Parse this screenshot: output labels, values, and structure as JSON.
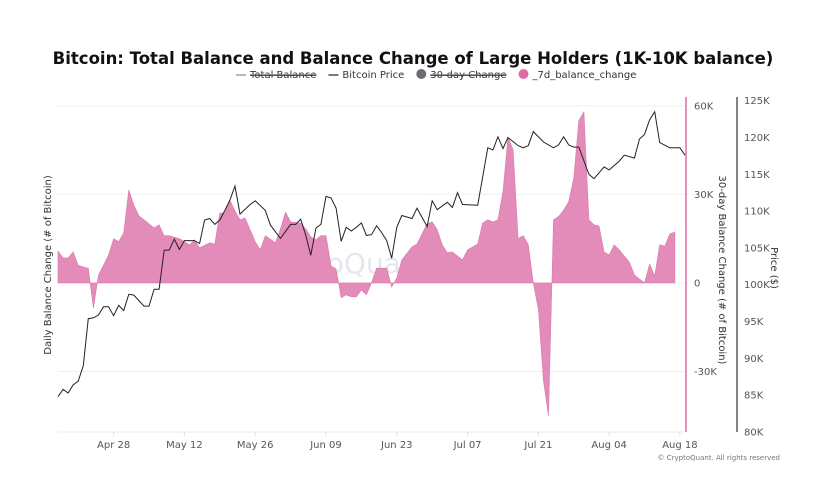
{
  "chart_data": {
    "type": "line+area",
    "title": "Bitcoin: Total Balance and Balance Change of Large Holders (1K-10K balance)",
    "legend": {
      "placement": "top",
      "entries": [
        {
          "label": "Total Balance",
          "hidden": true,
          "color": "#888888",
          "marker": "line"
        },
        {
          "label": "Bitcoin Price",
          "hidden": false,
          "color": "#222222",
          "marker": "line"
        },
        {
          "label": "30-day Change",
          "hidden": true,
          "color": "#6b6b78",
          "marker": "dot"
        },
        {
          "label": "_7d_balance_change",
          "hidden": false,
          "color": "#e06aa6",
          "marker": "dot"
        }
      ]
    },
    "x_ticks": [
      "Apr 28",
      "May 12",
      "May 26",
      "Jun 09",
      "Jun 23",
      "Jul 07",
      "Jul 21",
      "Aug 04",
      "Aug 18"
    ],
    "left_axis": {
      "label": "Daily Balance Change (# of Bitcoin)"
    },
    "right_axis_1": {
      "label": "30-day Balance Change (# of Bitcoin)",
      "ticks": [
        "60K",
        "30K",
        "0",
        "-30K"
      ],
      "tick_values": [
        60,
        30,
        0,
        -30
      ],
      "range": [
        -50.5,
        63
      ],
      "unit": "K",
      "color": "#e06aa6"
    },
    "right_axis_2": {
      "label": "Price ($)",
      "ticks": [
        "125K",
        "120K",
        "115K",
        "110K",
        "105K",
        "100K",
        "95K",
        "90K",
        "85K",
        "80K"
      ],
      "tick_values": [
        125,
        120,
        115,
        110,
        105,
        100,
        95,
        90,
        85,
        80
      ],
      "range": [
        80,
        125.5
      ],
      "unit": "K"
    },
    "grid": true,
    "x_range": [
      "Apr 17",
      "Aug 19"
    ],
    "series": [
      {
        "name": "_7d_balance_change",
        "type": "area",
        "color": "#e38bb9",
        "axis": "right_axis_1",
        "unit": "K BTC",
        "points": [
          [
            "Apr 17",
            10.8
          ],
          [
            "Apr 18",
            8.5
          ],
          [
            "Apr 19",
            8.5
          ],
          [
            "Apr 20",
            10.5
          ],
          [
            "Apr 21",
            6
          ],
          [
            "Apr 22",
            5.4
          ],
          [
            "Apr 23",
            5
          ],
          [
            "Apr 24",
            -8.5
          ],
          [
            "Apr 25",
            2.7
          ],
          [
            "Apr 26",
            6
          ],
          [
            "Apr 27",
            9.5
          ],
          [
            "Apr 28",
            15
          ],
          [
            "Apr 29",
            14
          ],
          [
            "Apr 30",
            17
          ],
          [
            "May 1",
            31.5
          ],
          [
            "May 2",
            26.4
          ],
          [
            "May 3",
            22.7
          ],
          [
            "May 4",
            21.4
          ],
          [
            "May 5",
            20
          ],
          [
            "May 6",
            18.6
          ],
          [
            "May 7",
            19.7
          ],
          [
            "May 8",
            16
          ],
          [
            "May 9",
            16
          ],
          [
            "May 11",
            15
          ],
          [
            "May 12",
            14
          ],
          [
            "May 13",
            12.9
          ],
          [
            "May 14",
            14.6
          ],
          [
            "May 15",
            11.9
          ],
          [
            "May 17",
            13.6
          ],
          [
            "May 18",
            13.2
          ],
          [
            "May 19",
            23.7
          ],
          [
            "May 20",
            23.7
          ],
          [
            "May 21",
            28
          ],
          [
            "May 22",
            24.4
          ],
          [
            "May 23",
            21.4
          ],
          [
            "May 24",
            22
          ],
          [
            "May 25",
            18
          ],
          [
            "May 26",
            14
          ],
          [
            "May 27",
            11.2
          ],
          [
            "May 28",
            16
          ],
          [
            "May 30",
            13.6
          ],
          [
            "May 31",
            18.3
          ],
          [
            "Jun 1",
            24
          ],
          [
            "Jun 2",
            20.7
          ],
          [
            "Jun 4",
            20.3
          ],
          [
            "Jun 5",
            18.3
          ],
          [
            "Jun 6",
            15.6
          ],
          [
            "Jun 7",
            14.6
          ],
          [
            "Jun 8",
            16
          ],
          [
            "Jun 9",
            16
          ],
          [
            "Jun 10",
            5.8
          ],
          [
            "Jun 11",
            4.7
          ],
          [
            "Jun 12",
            -5
          ],
          [
            "Jun 13",
            -4
          ],
          [
            "Jun 14",
            -4.7
          ],
          [
            "Jun 15",
            -4.7
          ],
          [
            "Jun 16",
            -2.4
          ],
          [
            "Jun 17",
            -4
          ],
          [
            "Jun 18",
            0
          ],
          [
            "Jun 19",
            5
          ],
          [
            "Jun 21",
            5
          ],
          [
            "Jun 22",
            -1.4
          ],
          [
            "Jun 23",
            1.7
          ],
          [
            "Jun 24",
            7.8
          ],
          [
            "Jun 26",
            12.2
          ],
          [
            "Jun 27",
            13.2
          ],
          [
            "Jun 29",
            20
          ],
          [
            "Jun 30",
            20.7
          ],
          [
            "Jul 1",
            18
          ],
          [
            "Jul 2",
            12.9
          ],
          [
            "Jul 3",
            10.2
          ],
          [
            "Jul 4",
            10.5
          ],
          [
            "Jul 6",
            7.8
          ],
          [
            "Jul 7",
            11.2
          ],
          [
            "Jul 9",
            13.2
          ],
          [
            "Jul 10",
            20.3
          ],
          [
            "Jul 11",
            21.4
          ],
          [
            "Jul 12",
            20.7
          ],
          [
            "Jul 13",
            21.4
          ],
          [
            "Jul 14",
            31
          ],
          [
            "Jul 15",
            49.5
          ],
          [
            "Jul 16",
            45
          ],
          [
            "Jul 17",
            15
          ],
          [
            "Jul 18",
            16
          ],
          [
            "Jul 19",
            13
          ],
          [
            "Jul 20",
            0
          ],
          [
            "Jul 21",
            -9
          ],
          [
            "Jul 22",
            -33
          ],
          [
            "Jul 23",
            -45
          ],
          [
            "Jul 24",
            21.4
          ],
          [
            "Jul 25",
            22.5
          ],
          [
            "Jul 26",
            24.7
          ],
          [
            "Jul 27",
            27.5
          ],
          [
            "Jul 28",
            35.6
          ],
          [
            "Jul 29",
            55
          ],
          [
            "Jul 30",
            58
          ],
          [
            "Jul 31",
            21.4
          ],
          [
            "Aug 1",
            19.7
          ],
          [
            "Aug 2",
            19.3
          ],
          [
            "Aug 3",
            10.5
          ],
          [
            "Aug 4",
            9.5
          ],
          [
            "Aug 5",
            12.9
          ],
          [
            "Aug 6",
            11.2
          ],
          [
            "Aug 8",
            7
          ],
          [
            "Aug 9",
            2.7
          ],
          [
            "Aug 11",
            0
          ],
          [
            "Aug 12",
            6.4
          ],
          [
            "Aug 13",
            2.4
          ],
          [
            "Aug 14",
            12.9
          ],
          [
            "Aug 15",
            12.5
          ],
          [
            "Aug 16",
            16.6
          ],
          [
            "Aug 17",
            17.3
          ]
        ]
      },
      {
        "name": "Bitcoin Price",
        "type": "line",
        "color": "#222222",
        "axis": "right_axis_2",
        "unit": "K USD",
        "points": [
          [
            "Apr 17",
            84.8
          ],
          [
            "Apr 18",
            85.8
          ],
          [
            "Apr 19",
            85.3
          ],
          [
            "Apr 20",
            86.4
          ],
          [
            "Apr 21",
            86.9
          ],
          [
            "Apr 22",
            89
          ],
          [
            "Apr 23",
            95.4
          ],
          [
            "Apr 24",
            95.5
          ],
          [
            "Apr 25",
            95.9
          ],
          [
            "Apr 26",
            97
          ],
          [
            "Apr 27",
            97
          ],
          [
            "Apr 28",
            95.8
          ],
          [
            "Apr 29",
            97.2
          ],
          [
            "Apr 30",
            96.5
          ],
          [
            "May 1",
            98.7
          ],
          [
            "May 2",
            98.6
          ],
          [
            "May 4",
            97.1
          ],
          [
            "May 5",
            97.1
          ],
          [
            "May 6",
            99.4
          ],
          [
            "May 7",
            99.4
          ],
          [
            "May 8",
            104.7
          ],
          [
            "May 9",
            104.7
          ],
          [
            "May 10",
            106.2
          ],
          [
            "May 11",
            104.8
          ],
          [
            "May 12",
            106
          ],
          [
            "May 14",
            106
          ],
          [
            "May 15",
            105.6
          ],
          [
            "May 16",
            108.8
          ],
          [
            "May 17",
            109
          ],
          [
            "May 18",
            108.2
          ],
          [
            "May 19",
            108.8
          ],
          [
            "May 20",
            110.1
          ],
          [
            "May 21",
            111.5
          ],
          [
            "May 22",
            113.4
          ],
          [
            "May 23",
            109.6
          ],
          [
            "May 25",
            110.9
          ],
          [
            "May 26",
            111.4
          ],
          [
            "May 28",
            110.1
          ],
          [
            "May 29",
            108.1
          ],
          [
            "May 31",
            106.3
          ],
          [
            "Jun 2",
            108.2
          ],
          [
            "Jun 3",
            108.2
          ],
          [
            "Jun 4",
            108.9
          ],
          [
            "Jun 5",
            106.7
          ],
          [
            "Jun 6",
            104
          ],
          [
            "Jun 7",
            107.7
          ],
          [
            "Jun 8",
            108.2
          ],
          [
            "Jun 9",
            112
          ],
          [
            "Jun 10",
            111.8
          ],
          [
            "Jun 11",
            110.4
          ],
          [
            "Jun 12",
            105.9
          ],
          [
            "Jun 13",
            107.8
          ],
          [
            "Jun 14",
            107.3
          ],
          [
            "Jun 15",
            107.8
          ],
          [
            "Jun 16",
            108.4
          ],
          [
            "Jun 17",
            106.7
          ],
          [
            "Jun 18",
            106.8
          ],
          [
            "Jun 19",
            108
          ],
          [
            "Jun 20",
            107.1
          ],
          [
            "Jun 21",
            106
          ],
          [
            "Jun 22",
            103.6
          ],
          [
            "Jun 23",
            107.8
          ],
          [
            "Jun 24",
            109.4
          ],
          [
            "Jun 26",
            109
          ],
          [
            "Jun 27",
            110.4
          ],
          [
            "Jun 29",
            107.9
          ],
          [
            "Jun 30",
            111.4
          ],
          [
            "Jul 1",
            110.2
          ],
          [
            "Jul 3",
            111.2
          ],
          [
            "Jul 4",
            110.5
          ],
          [
            "Jul 5",
            112.5
          ],
          [
            "Jul 6",
            110.9
          ],
          [
            "Jul 9",
            110.8
          ],
          [
            "Jul 11",
            118.6
          ],
          [
            "Jul 12",
            118.3
          ],
          [
            "Jul 13",
            120.1
          ],
          [
            "Jul 14",
            118.5
          ],
          [
            "Jul 15",
            120
          ],
          [
            "Jul 17",
            118.9
          ],
          [
            "Jul 18",
            118.6
          ],
          [
            "Jul 19",
            118.9
          ],
          [
            "Jul 20",
            120.8
          ],
          [
            "Jul 22",
            119.4
          ],
          [
            "Jul 24",
            118.6
          ],
          [
            "Jul 25",
            119
          ],
          [
            "Jul 26",
            120.1
          ],
          [
            "Jul 27",
            119
          ],
          [
            "Jul 28",
            118.7
          ],
          [
            "Jul 29",
            118.7
          ],
          [
            "Jul 31",
            115
          ],
          [
            "Aug 1",
            114.4
          ],
          [
            "Aug 3",
            116
          ],
          [
            "Aug 4",
            115.6
          ],
          [
            "Aug 6",
            116.8
          ],
          [
            "Aug 7",
            117.6
          ],
          [
            "Aug 9",
            117.2
          ],
          [
            "Aug 10",
            119.8
          ],
          [
            "Aug 11",
            120.4
          ],
          [
            "Aug 12",
            122.4
          ],
          [
            "Aug 13",
            123.5
          ],
          [
            "Aug 14",
            119.3
          ],
          [
            "Aug 16",
            118.6
          ],
          [
            "Aug 18",
            118.6
          ],
          [
            "Aug 19",
            117.6
          ]
        ]
      }
    ]
  },
  "watermark": "CryptoQuant",
  "copyright": "© CryptoQuant. All rights reserved"
}
